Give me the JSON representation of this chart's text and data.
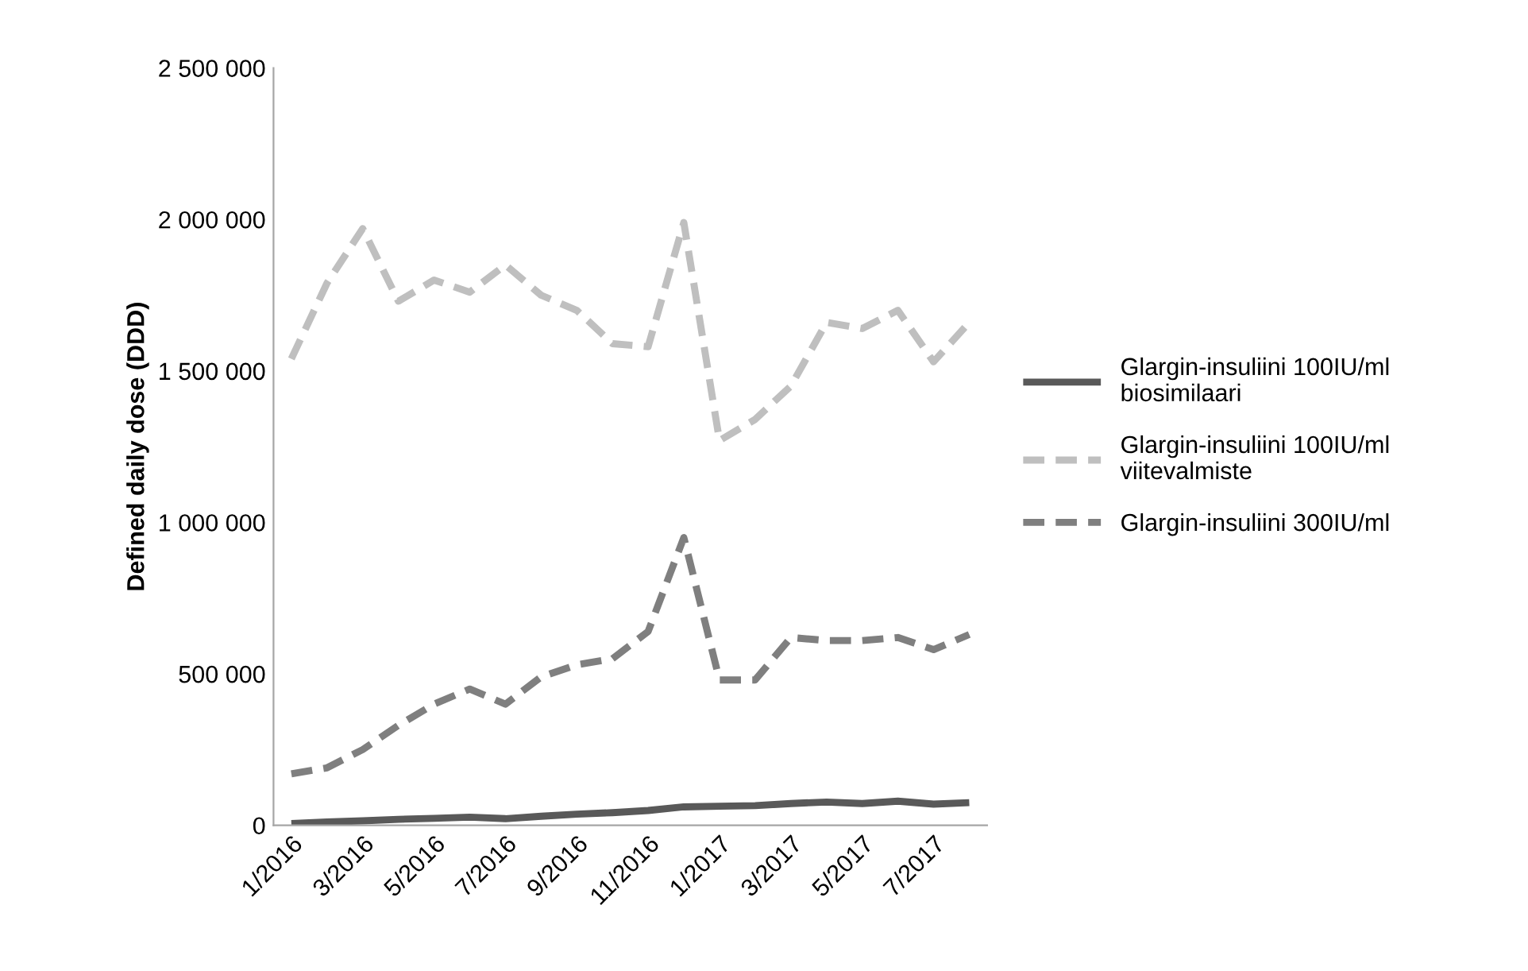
{
  "chart_data": {
    "type": "line",
    "ylabel": "Defined daily dose (DDD)",
    "categories": [
      "1/2016",
      null,
      "3/2016",
      null,
      "5/2016",
      null,
      "7/2016",
      null,
      "9/2016",
      null,
      "11/2016",
      null,
      "1/2017",
      null,
      "3/2017",
      null,
      "5/2017",
      null,
      "7/2017",
      null
    ],
    "series": [
      {
        "name": "Glargin-insuliini 100IU/ml\nbiosimilaari",
        "color": "#595959",
        "line_style": "solid",
        "values": [
          6000,
          11000,
          15000,
          20000,
          23000,
          27000,
          22000,
          30000,
          37000,
          42000,
          49000,
          61000,
          63000,
          65000,
          72000,
          77000,
          72000,
          80000,
          70000,
          75000
        ]
      },
      {
        "name": "Glargin-insuliini 100IU/ml\nviitevalmiste",
        "color": "#bfbfbf",
        "line_style": "dashed",
        "values": [
          1540000,
          1790000,
          1970000,
          1730000,
          1800000,
          1760000,
          1850000,
          1750000,
          1700000,
          1590000,
          1580000,
          1990000,
          1270000,
          1340000,
          1450000,
          1660000,
          1640000,
          1700000,
          1530000,
          1660000
        ]
      },
      {
        "name": "Glargin-insuliini 300IU/ml",
        "color": "#7f7f7f",
        "line_style": "dashed",
        "values": [
          170000,
          190000,
          250000,
          330000,
          400000,
          450000,
          400000,
          490000,
          530000,
          550000,
          640000,
          950000,
          480000,
          480000,
          620000,
          610000,
          610000,
          620000,
          580000,
          630000
        ]
      }
    ],
    "ylim": [
      0,
      2500000
    ],
    "yticks": [
      {
        "value": 0,
        "label": "0"
      },
      {
        "value": 500000,
        "label": "500 000"
      },
      {
        "value": 1000000,
        "label": "1 000 000"
      },
      {
        "value": 1500000,
        "label": "1 500 000"
      },
      {
        "value": 2000000,
        "label": "2 000 000"
      },
      {
        "value": 2500000,
        "label": "2 500 000"
      }
    ],
    "grid": false,
    "legend": "right",
    "marker": "none"
  }
}
